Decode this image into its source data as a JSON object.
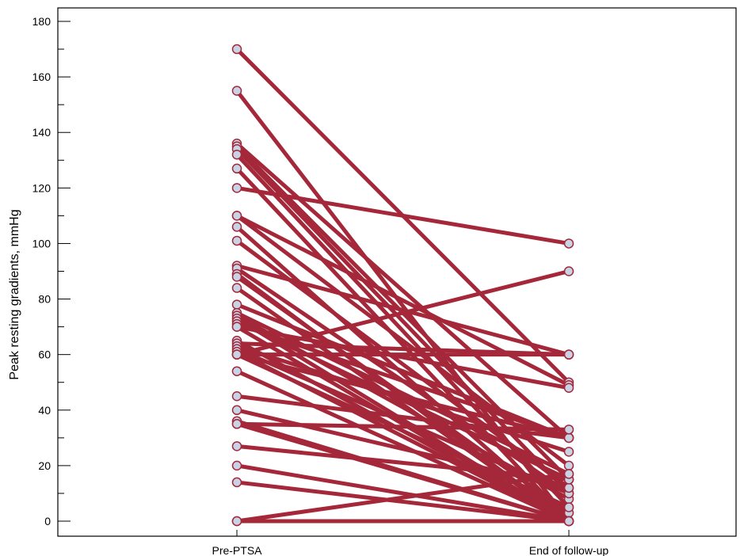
{
  "chart_data": {
    "type": "line",
    "categories": [
      "Pre-PTSA",
      "End of follow-up"
    ],
    "ylabel": "Peak resting gradients, mmHg",
    "ylim": [
      -5,
      185
    ],
    "yticks": [
      0,
      20,
      40,
      60,
      80,
      100,
      120,
      140,
      160,
      180
    ],
    "grid": false,
    "legend": "none",
    "colors": {
      "line": "#a5283a",
      "marker_fill": "#c9d3e6",
      "marker_stroke": "#a5283a",
      "axis": "#000000"
    },
    "pairs": [
      [
        170,
        50
      ],
      [
        155,
        0
      ],
      [
        136,
        30
      ],
      [
        135,
        15
      ],
      [
        134,
        10
      ],
      [
        132,
        5
      ],
      [
        127,
        0
      ],
      [
        120,
        100
      ],
      [
        110,
        49
      ],
      [
        110,
        20
      ],
      [
        106,
        0
      ],
      [
        101,
        12
      ],
      [
        92,
        60
      ],
      [
        91,
        10
      ],
      [
        89,
        0
      ],
      [
        88,
        3
      ],
      [
        84,
        0
      ],
      [
        78,
        30
      ],
      [
        75,
        17
      ],
      [
        74,
        8
      ],
      [
        73,
        0
      ],
      [
        72,
        15
      ],
      [
        71,
        30
      ],
      [
        70,
        48
      ],
      [
        70,
        0
      ],
      [
        65,
        0
      ],
      [
        64,
        60
      ],
      [
        63,
        25
      ],
      [
        62,
        10
      ],
      [
        61,
        0
      ],
      [
        60,
        90
      ],
      [
        60,
        60
      ],
      [
        60,
        30
      ],
      [
        60,
        5
      ],
      [
        54,
        0
      ],
      [
        45,
        30
      ],
      [
        40,
        12
      ],
      [
        36,
        0
      ],
      [
        35,
        33
      ],
      [
        35,
        0
      ],
      [
        27,
        15
      ],
      [
        20,
        0
      ],
      [
        14,
        0
      ],
      [
        0,
        17
      ],
      [
        0,
        0
      ]
    ]
  }
}
